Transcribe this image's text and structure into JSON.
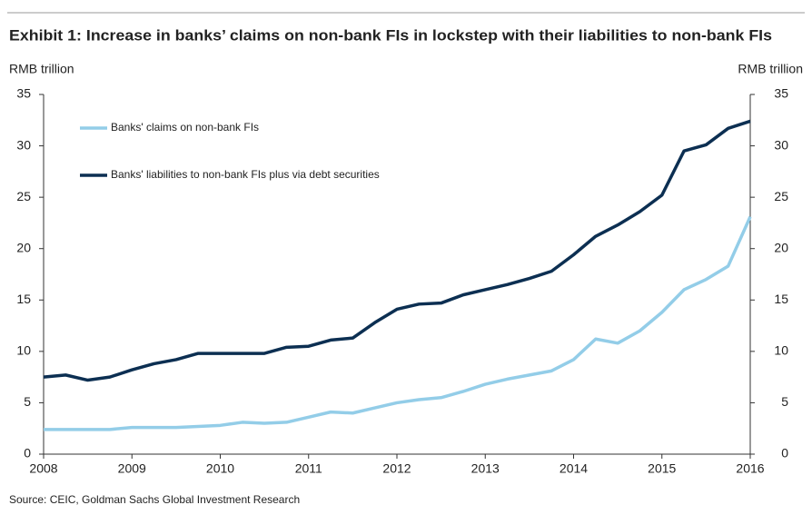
{
  "chart_data": {
    "type": "line",
    "title": "Exhibit 1: Increase in banks’ claims on non-bank FIs in lockstep with their liabilities to non-bank FIs",
    "y_label": "RMB trillion",
    "y2_label": "RMB trillion",
    "source": "Source: CEIC, Goldman Sachs Global Investment Research",
    "x": [
      2008,
      2008.25,
      2008.5,
      2008.75,
      2009,
      2009.25,
      2009.5,
      2009.75,
      2010,
      2010.25,
      2010.5,
      2010.75,
      2011,
      2011.25,
      2011.5,
      2011.75,
      2012,
      2012.25,
      2012.5,
      2012.75,
      2013,
      2013.25,
      2013.5,
      2013.75,
      2014,
      2014.25,
      2014.5,
      2014.75,
      2015,
      2015.25,
      2015.5,
      2015.75,
      2016
    ],
    "series": [
      {
        "name": "Banks' claims on non-bank FIs",
        "color": "#93cde8",
        "values": [
          2.4,
          2.4,
          2.4,
          2.4,
          2.6,
          2.6,
          2.6,
          2.7,
          2.8,
          3.1,
          3.0,
          3.1,
          3.6,
          4.1,
          4.0,
          4.5,
          5.0,
          5.3,
          5.5,
          6.1,
          6.8,
          7.3,
          7.7,
          8.1,
          9.2,
          11.2,
          10.8,
          12.0,
          13.8,
          16.0,
          17.0,
          18.3,
          23.1
        ]
      },
      {
        "name": "Banks' liabilities to non-bank FIs plus via debt securities",
        "color": "#0c2f52",
        "values": [
          7.5,
          7.7,
          7.2,
          7.5,
          8.2,
          8.8,
          9.2,
          9.8,
          9.8,
          9.8,
          9.8,
          10.4,
          10.5,
          11.1,
          11.3,
          12.8,
          14.1,
          14.6,
          14.7,
          15.5,
          16.0,
          16.5,
          17.1,
          17.8,
          19.4,
          21.2,
          22.3,
          23.6,
          25.2,
          29.5,
          30.1,
          31.7,
          32.4
        ]
      }
    ],
    "xlim": [
      2008,
      2016
    ],
    "xticks": [
      2008,
      2009,
      2010,
      2011,
      2012,
      2013,
      2014,
      2015,
      2016
    ],
    "ylim": [
      0,
      35
    ],
    "yticks": [
      0,
      5,
      10,
      15,
      20,
      25,
      30,
      35
    ],
    "y2lim": [
      0,
      35
    ],
    "y2ticks": [
      0,
      5,
      10,
      15,
      20,
      25,
      30,
      35
    ],
    "grid": false,
    "legend": "upper left"
  }
}
